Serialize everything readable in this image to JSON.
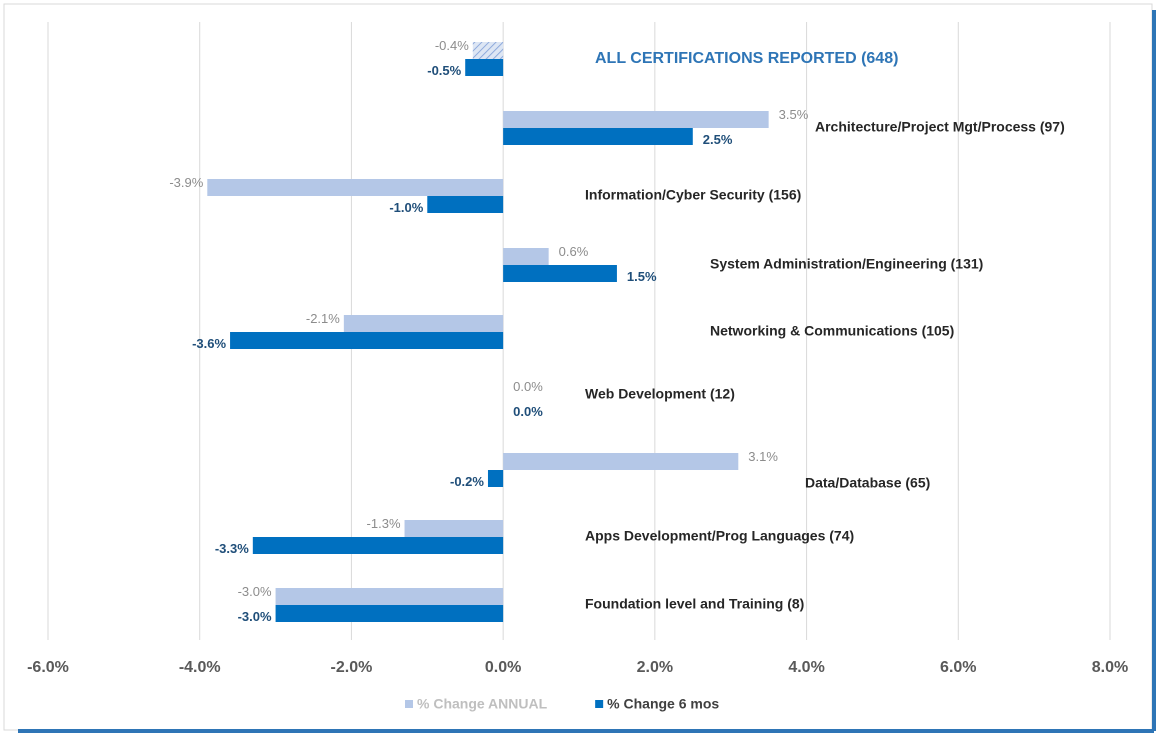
{
  "chart_data": {
    "type": "hbar",
    "categories": [
      "ALL CERTIFICATIONS REPORTED (648)",
      "Architecture/Project Mgt/Process (97)",
      "Information/Cyber Security (156)",
      "System Administration/Engineering (131)",
      "Networking & Communications (105)",
      "Web Development (12)",
      "Data/Database (65)",
      "Apps Development/Prog Languages (74)",
      "Foundation level and Training (8)"
    ],
    "series": [
      {
        "name": "% Change ANNUAL",
        "color": "#b4c7e7",
        "values": [
          -0.4,
          3.5,
          -3.9,
          0.6,
          -2.1,
          0.0,
          3.1,
          -1.3,
          -3.0
        ],
        "value_labels": [
          "-0.4%",
          "3.5%",
          "-3.9%",
          "0.6%",
          "-2.1%",
          "0.0%",
          "3.1%",
          "-1.3%",
          "-3.0%"
        ]
      },
      {
        "name": "% Change 6 mos",
        "color": "#0070c0",
        "values": [
          -0.5,
          2.5,
          -1.0,
          1.5,
          -3.6,
          0.0,
          -0.2,
          -3.3,
          -3.0
        ],
        "value_labels": [
          "-0.5%",
          "2.5%",
          "-1.0%",
          "1.5%",
          "-3.6%",
          "0.0%",
          "-0.2%",
          "-3.3%",
          "-3.0%"
        ]
      }
    ],
    "xlim": [
      -6,
      8
    ],
    "xticks": [
      {
        "value": -6,
        "label": "-6.0%"
      },
      {
        "value": -4,
        "label": "-4.0%"
      },
      {
        "value": -2,
        "label": "-2.0%"
      },
      {
        "value": 0,
        "label": "0.0%"
      },
      {
        "value": 2,
        "label": "2.0%"
      },
      {
        "value": 4,
        "label": "4.0%"
      },
      {
        "value": 6,
        "label": "6.0%"
      },
      {
        "value": 8,
        "label": "8.0%"
      }
    ],
    "grid": true,
    "legend": "bottom"
  }
}
